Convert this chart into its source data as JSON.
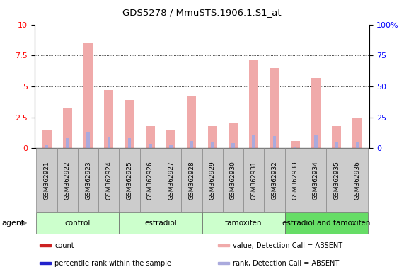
{
  "title": "GDS5278 / MmuSTS.1906.1.S1_at",
  "samples": [
    "GSM362921",
    "GSM362922",
    "GSM362923",
    "GSM362924",
    "GSM362925",
    "GSM362926",
    "GSM362927",
    "GSM362928",
    "GSM362929",
    "GSM362930",
    "GSM362931",
    "GSM362932",
    "GSM362933",
    "GSM362934",
    "GSM362935",
    "GSM362936"
  ],
  "count_values": [
    1.5,
    3.2,
    8.5,
    4.7,
    3.9,
    1.8,
    1.5,
    4.2,
    1.8,
    2.0,
    7.1,
    6.5,
    0.6,
    5.7,
    1.8,
    2.4
  ],
  "rank_values": [
    0.3,
    0.8,
    1.3,
    0.9,
    0.8,
    0.35,
    0.3,
    0.6,
    0.45,
    0.4,
    1.1,
    1.0,
    0.1,
    1.1,
    0.45,
    0.5
  ],
  "ylim_left": [
    0,
    10
  ],
  "ylim_right": [
    0,
    100
  ],
  "yticks_left": [
    0,
    2.5,
    5.0,
    7.5,
    10
  ],
  "yticks_right": [
    0,
    25,
    50,
    75,
    100
  ],
  "color_count_absent": "#f0aaaa",
  "color_rank_absent": "#aaaadd",
  "group_colors": [
    "#ccffcc",
    "#ccffcc",
    "#ccffcc",
    "#66dd66"
  ],
  "group_labels": [
    "control",
    "estradiol",
    "tamoxifen",
    "estradiol and tamoxifen"
  ],
  "group_starts": [
    0,
    4,
    8,
    12
  ],
  "group_ends": [
    3,
    7,
    11,
    15
  ],
  "legend_items": [
    {
      "label": "count",
      "color": "#cc2222"
    },
    {
      "label": "percentile rank within the sample",
      "color": "#2222cc"
    },
    {
      "label": "value, Detection Call = ABSENT",
      "color": "#f0aaaa"
    },
    {
      "label": "rank, Detection Call = ABSENT",
      "color": "#aaaadd"
    }
  ]
}
